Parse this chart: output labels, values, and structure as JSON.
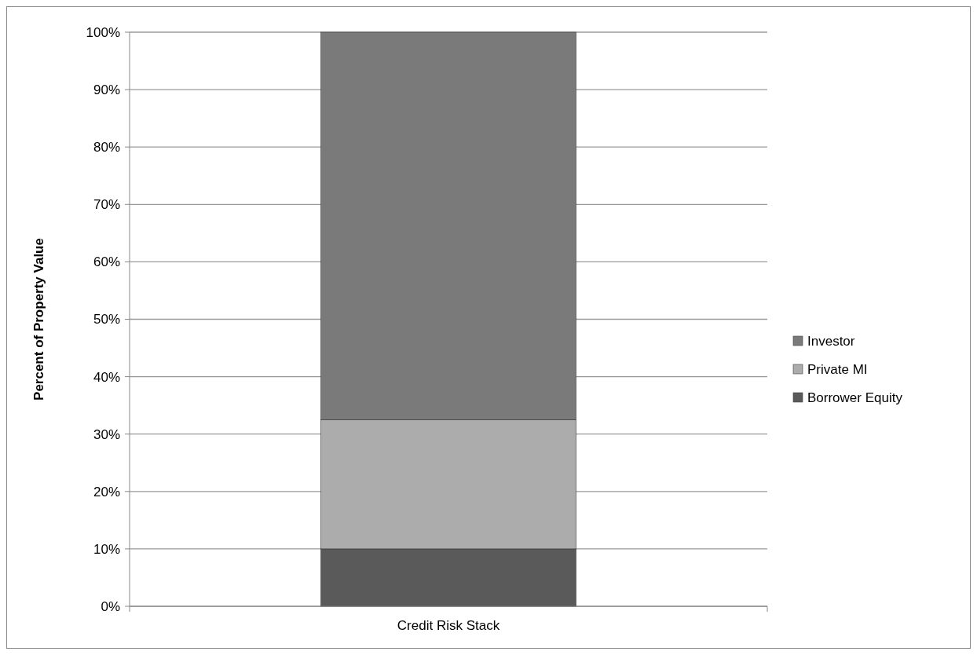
{
  "chart_data": {
    "type": "bar",
    "stacked": true,
    "categories": [
      "Credit Risk Stack"
    ],
    "ylabel": "Percent of Property Value",
    "series": [
      {
        "name": "Borrower Equity",
        "color": "#5a5a5a",
        "values": [
          10
        ]
      },
      {
        "name": "Private MI",
        "color": "#acacac",
        "values": [
          22.5
        ]
      },
      {
        "name": "Investor",
        "color": "#7a7a7a",
        "values": [
          67.5
        ]
      }
    ],
    "ylim": [
      0,
      100
    ],
    "yticks": [
      {
        "value": 0,
        "label": "0%"
      },
      {
        "value": 10,
        "label": "10%"
      },
      {
        "value": 20,
        "label": "20%"
      },
      {
        "value": 30,
        "label": "30%"
      },
      {
        "value": 40,
        "label": "40%"
      },
      {
        "value": 50,
        "label": "50%"
      },
      {
        "value": 60,
        "label": "60%"
      },
      {
        "value": 70,
        "label": "70%"
      },
      {
        "value": 80,
        "label": "80%"
      },
      {
        "value": 90,
        "label": "90%"
      },
      {
        "value": 100,
        "label": "100%"
      }
    ],
    "grid": "y",
    "legend": "right"
  }
}
